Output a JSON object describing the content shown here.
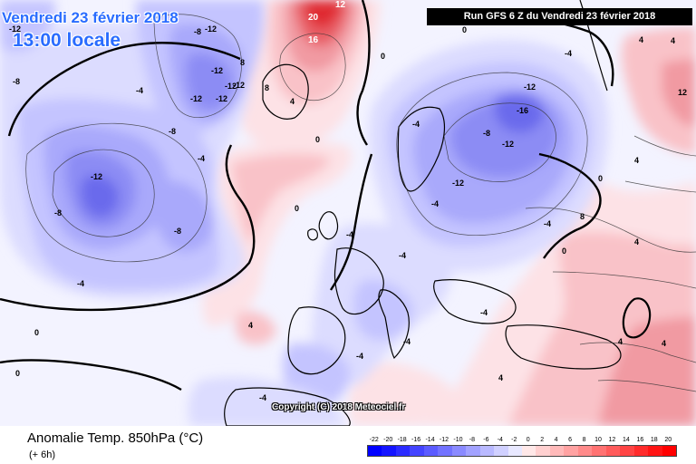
{
  "header": {
    "date_label": "Vendredi 23 février 2018",
    "time_label": "13:00 locale",
    "run_label": "Run GFS 6 Z du Vendredi 23 février 2018"
  },
  "footer": {
    "parameter": "Anomalie Temp. 850hPa (°C)",
    "lead_time": "(+ 6h)",
    "copyright": "Copyright (C) 2018 Meteociel.fr"
  },
  "legend": {
    "labels": [
      "-22",
      "-20",
      "-18",
      "-16",
      "-14",
      "-12",
      "-10",
      "-8",
      "-6",
      "-4",
      "-2",
      "0",
      "2",
      "4",
      "6",
      "8",
      "10",
      "12",
      "14",
      "16",
      "18",
      "20"
    ],
    "colors": [
      "#0000ff",
      "#1414ff",
      "#2b2bff",
      "#4444ff",
      "#5b5bff",
      "#7272ff",
      "#8a8aff",
      "#a2a2ff",
      "#b9b9ff",
      "#d0d0ff",
      "#e8e8ff",
      "#ffe8e8",
      "#ffd0d0",
      "#ffb9b9",
      "#ffa2a2",
      "#ff8a8a",
      "#ff7272",
      "#ff5b5b",
      "#ff4444",
      "#ff2b2b",
      "#ff1414",
      "#ff0000"
    ]
  },
  "map": {
    "colors": {
      "neutral": "#f3f3ff",
      "cold_1": "#dcdcff",
      "cold_2": "#c4c4ff",
      "cold_3": "#a9a9fb",
      "cold_4": "#8c8cf4",
      "cold_5": "#6b6bec",
      "warm_1": "#fde2e6",
      "warm_2": "#f9c2c8",
      "warm_3": "#f19aa2",
      "warm_4": "#e85f66",
      "warm_5": "#e02a33"
    },
    "contour_labels": [
      "-12",
      "-12",
      "-12",
      "-12",
      "-12",
      "-12",
      "-12",
      "-12",
      "-12",
      "-16",
      "-12",
      "-12",
      "-8",
      "-8",
      "-8",
      "-8",
      "-8",
      "-8",
      "-4",
      "-4",
      "-4",
      "-4",
      "-4",
      "-4",
      "-4",
      "-4",
      "-4",
      "-4",
      "-4",
      "-4",
      "-4",
      "0",
      "0",
      "0",
      "0",
      "0",
      "0",
      "0",
      "0",
      "4",
      "4",
      "4",
      "4",
      "4",
      "4",
      "4",
      "4",
      "4",
      "8",
      "8",
      "8",
      "12",
      "16",
      "20",
      "12"
    ]
  }
}
